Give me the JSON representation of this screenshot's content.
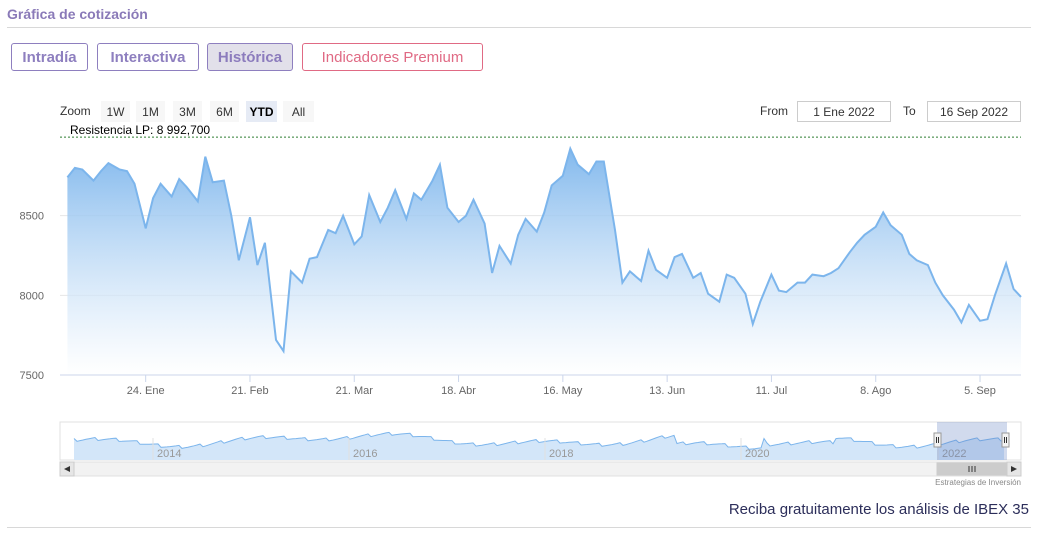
{
  "header": {
    "title": "Gráfica de cotización"
  },
  "tabs": [
    {
      "label": "Intradía",
      "active": false
    },
    {
      "label": "Interactiva",
      "active": false
    },
    {
      "label": "Histórica",
      "active": true
    },
    {
      "label": "Indicadores Premium",
      "active": false
    }
  ],
  "zoom": {
    "label": "Zoom",
    "buttons": [
      "1W",
      "1M",
      "3M",
      "6M",
      "YTD",
      "All"
    ],
    "selected": "YTD"
  },
  "range": {
    "from_label": "From",
    "from_value": "1 Ene 2022",
    "to_label": "To",
    "to_value": "16 Sep 2022"
  },
  "resistance": {
    "label": "Resistencia LP: 8 992,700",
    "value": 8992.7
  },
  "colors": {
    "accent": "#8e7fbf",
    "premium": "#e06a84",
    "series_line": "#7cb5ec",
    "resistance_line": "#2e7d32"
  },
  "chart_data": {
    "type": "area",
    "ylim": [
      7500,
      9000
    ],
    "yticks": [
      7500,
      8000,
      8500
    ],
    "ytick_labels": [
      "7500",
      "8000",
      "8500"
    ],
    "xlim": [
      "2022-01-01",
      "2022-09-16"
    ],
    "xticks": [
      {
        "date": "2022-01-24",
        "label": "24. Ene"
      },
      {
        "date": "2022-02-21",
        "label": "21. Feb"
      },
      {
        "date": "2022-03-21",
        "label": "21. Mar"
      },
      {
        "date": "2022-04-18",
        "label": "18. Abr"
      },
      {
        "date": "2022-05-16",
        "label": "16. May"
      },
      {
        "date": "2022-06-13",
        "label": "13. Jun"
      },
      {
        "date": "2022-07-11",
        "label": "11. Jul"
      },
      {
        "date": "2022-08-08",
        "label": "8. Ago"
      },
      {
        "date": "2022-09-05",
        "label": "5. Sep"
      }
    ],
    "grid": true,
    "series": [
      {
        "x": [
          "2022-01-03",
          "2022-01-05",
          "2022-01-07",
          "2022-01-10",
          "2022-01-12",
          "2022-01-14",
          "2022-01-17",
          "2022-01-19",
          "2022-01-21",
          "2022-01-24",
          "2022-01-26",
          "2022-01-28",
          "2022-01-31",
          "2022-02-02",
          "2022-02-04",
          "2022-02-07",
          "2022-02-09",
          "2022-02-11",
          "2022-02-14",
          "2022-02-16",
          "2022-02-18",
          "2022-02-21",
          "2022-02-23",
          "2022-02-25",
          "2022-02-28",
          "2022-03-02",
          "2022-03-04",
          "2022-03-07",
          "2022-03-09",
          "2022-03-11",
          "2022-03-14",
          "2022-03-16",
          "2022-03-18",
          "2022-03-21",
          "2022-03-23",
          "2022-03-25",
          "2022-03-28",
          "2022-03-30",
          "2022-04-01",
          "2022-04-04",
          "2022-04-06",
          "2022-04-08",
          "2022-04-11",
          "2022-04-13",
          "2022-04-15",
          "2022-04-18",
          "2022-04-20",
          "2022-04-22",
          "2022-04-25",
          "2022-04-27",
          "2022-04-29",
          "2022-05-02",
          "2022-05-04",
          "2022-05-06",
          "2022-05-09",
          "2022-05-11",
          "2022-05-13",
          "2022-05-16",
          "2022-05-18",
          "2022-05-20",
          "2022-05-23",
          "2022-05-25",
          "2022-05-27",
          "2022-05-30",
          "2022-06-01",
          "2022-06-03",
          "2022-06-06",
          "2022-06-08",
          "2022-06-10",
          "2022-06-13",
          "2022-06-15",
          "2022-06-17",
          "2022-06-20",
          "2022-06-22",
          "2022-06-24",
          "2022-06-27",
          "2022-06-29",
          "2022-07-01",
          "2022-07-04",
          "2022-07-06",
          "2022-07-08",
          "2022-07-11",
          "2022-07-13",
          "2022-07-15",
          "2022-07-18",
          "2022-07-20",
          "2022-07-22",
          "2022-07-25",
          "2022-07-27",
          "2022-07-29",
          "2022-08-01",
          "2022-08-03",
          "2022-08-05",
          "2022-08-08",
          "2022-08-10",
          "2022-08-12",
          "2022-08-15",
          "2022-08-17",
          "2022-08-19",
          "2022-08-22",
          "2022-08-24",
          "2022-08-26",
          "2022-08-29",
          "2022-08-31",
          "2022-09-02",
          "2022-09-05",
          "2022-09-07",
          "2022-09-09",
          "2022-09-12",
          "2022-09-14",
          "2022-09-16"
        ],
        "y": [
          8740,
          8800,
          8790,
          8720,
          8780,
          8830,
          8790,
          8780,
          8700,
          8420,
          8610,
          8700,
          8620,
          8730,
          8680,
          8590,
          8870,
          8710,
          8720,
          8500,
          8220,
          8490,
          8190,
          8330,
          7720,
          7650,
          8150,
          8080,
          8230,
          8240,
          8410,
          8390,
          8500,
          8320,
          8370,
          8630,
          8460,
          8550,
          8660,
          8480,
          8640,
          8600,
          8720,
          8820,
          8550,
          8460,
          8500,
          8600,
          8450,
          8140,
          8310,
          8200,
          8380,
          8480,
          8400,
          8520,
          8690,
          8750,
          8920,
          8820,
          8760,
          8840,
          8840,
          8410,
          8080,
          8150,
          8090,
          8280,
          8160,
          8110,
          8240,
          8260,
          8110,
          8140,
          8010,
          7960,
          8130,
          8110,
          8010,
          7820,
          7960,
          8130,
          8030,
          8020,
          8080,
          8080,
          8130,
          8120,
          8140,
          8170,
          8270,
          8330,
          8380,
          8430,
          8520,
          8440,
          8380,
          8260,
          8220,
          8190,
          8080,
          8000,
          7910,
          7830,
          7940,
          7840,
          7850,
          8000,
          8200,
          8040,
          7990
        ],
        "fill_top": "#7cb5ec",
        "fill_bottom": "#ffffff"
      }
    ],
    "navigator": {
      "labels": [
        "2014",
        "2016",
        "2018",
        "2020",
        "2022"
      ]
    }
  },
  "footer": {
    "credit": "Estrategias de Inversión",
    "link": "Reciba gratuitamente los análisis de IBEX 35"
  }
}
